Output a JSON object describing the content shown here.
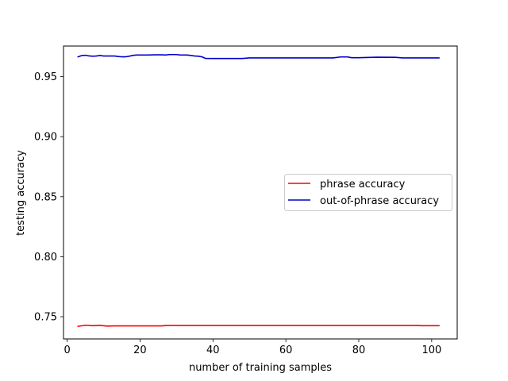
{
  "chart_data": {
    "type": "line",
    "title": "",
    "xlabel": "number of training samples",
    "ylabel": "testing accuracy",
    "xlim": [
      -1,
      107
    ],
    "ylim": [
      0.7315,
      0.9755
    ],
    "xticks": [
      0,
      20,
      40,
      60,
      80,
      100
    ],
    "yticks": [
      0.75,
      0.8,
      0.85,
      0.9,
      0.95
    ],
    "xtick_labels": [
      "0",
      "20",
      "40",
      "60",
      "80",
      "100"
    ],
    "ytick_labels": [
      "0.75",
      "0.80",
      "0.85",
      "0.90",
      "0.95"
    ],
    "grid": false,
    "legend_position": "center-right",
    "series": [
      {
        "name": "phrase accuracy",
        "color": "#ff0000",
        "x": [
          3,
          5,
          7,
          9,
          11,
          13,
          15,
          20,
          26,
          27,
          30,
          40,
          50,
          60,
          70,
          80,
          90,
          96,
          97,
          102
        ],
        "y": [
          0.742,
          0.7429,
          0.7425,
          0.7428,
          0.7422,
          0.7424,
          0.7424,
          0.7424,
          0.7424,
          0.7427,
          0.7427,
          0.7427,
          0.7427,
          0.7427,
          0.7427,
          0.7427,
          0.7427,
          0.7427,
          0.7425,
          0.7425
        ]
      },
      {
        "name": "out-of-phrase accuracy",
        "color": "#0000cc",
        "x": [
          3,
          4,
          5,
          6,
          7,
          8,
          9,
          10,
          11,
          12,
          13,
          14,
          15,
          16,
          17,
          18,
          19,
          20,
          22,
          24,
          26,
          27,
          28,
          30,
          31,
          33,
          35,
          36,
          37,
          38,
          40,
          45,
          48,
          50,
          55,
          60,
          65,
          70,
          73,
          75,
          77,
          78,
          80,
          85,
          90,
          92,
          95,
          100,
          102
        ],
        "y": [
          0.9665,
          0.9676,
          0.9678,
          0.9673,
          0.967,
          0.9672,
          0.9676,
          0.9672,
          0.9672,
          0.9672,
          0.9672,
          0.9668,
          0.9665,
          0.9665,
          0.967,
          0.9677,
          0.968,
          0.968,
          0.968,
          0.9682,
          0.9682,
          0.968,
          0.9684,
          0.9684,
          0.968,
          0.968,
          0.9672,
          0.967,
          0.9665,
          0.9652,
          0.9651,
          0.9651,
          0.9651,
          0.9656,
          0.9656,
          0.9656,
          0.9656,
          0.9656,
          0.9656,
          0.9664,
          0.9664,
          0.9658,
          0.9658,
          0.9662,
          0.9661,
          0.9656,
          0.9656,
          0.9656,
          0.9656
        ]
      }
    ]
  }
}
